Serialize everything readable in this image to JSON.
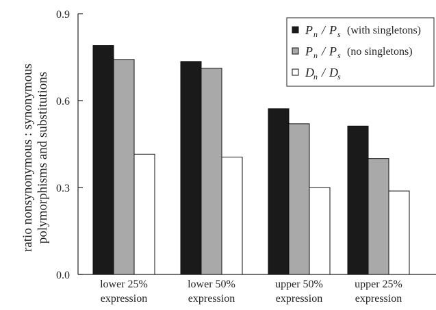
{
  "chart_data": {
    "type": "bar",
    "title": "",
    "xlabel": "",
    "ylabel": [
      "ratio nonsynonymous : synonymous",
      "polymorphisms and substitutions"
    ],
    "ylim": [
      0,
      0.9
    ],
    "yticks": [
      "0.0",
      "0.3",
      "0.6",
      "0.9"
    ],
    "categories": [
      [
        "lower 25%",
        "expression"
      ],
      [
        "lower 50%",
        "expression"
      ],
      [
        "upper 50%",
        "expression"
      ],
      [
        "upper 25%",
        "expression"
      ]
    ],
    "series": [
      {
        "name": "Pn / Ps (with singletons)",
        "sym": [
          "P",
          "n",
          "P",
          "s"
        ],
        "suffix": "(with singletons)",
        "color": "#1a1a1a",
        "values": [
          0.79,
          0.735,
          0.572,
          0.512
        ]
      },
      {
        "name": "Pn / Ps (no singletons)",
        "sym": [
          "P",
          "n",
          "P",
          "s"
        ],
        "suffix": "(no singletons)",
        "color": "#a9a9a9",
        "values": [
          0.742,
          0.712,
          0.52,
          0.4
        ]
      },
      {
        "name": "Dn / Ds",
        "sym": [
          "D",
          "n",
          "D",
          "s"
        ],
        "suffix": "",
        "color": "#ffffff",
        "values": [
          0.415,
          0.405,
          0.3,
          0.288
        ]
      }
    ],
    "legend": "top-right",
    "grid": false
  }
}
